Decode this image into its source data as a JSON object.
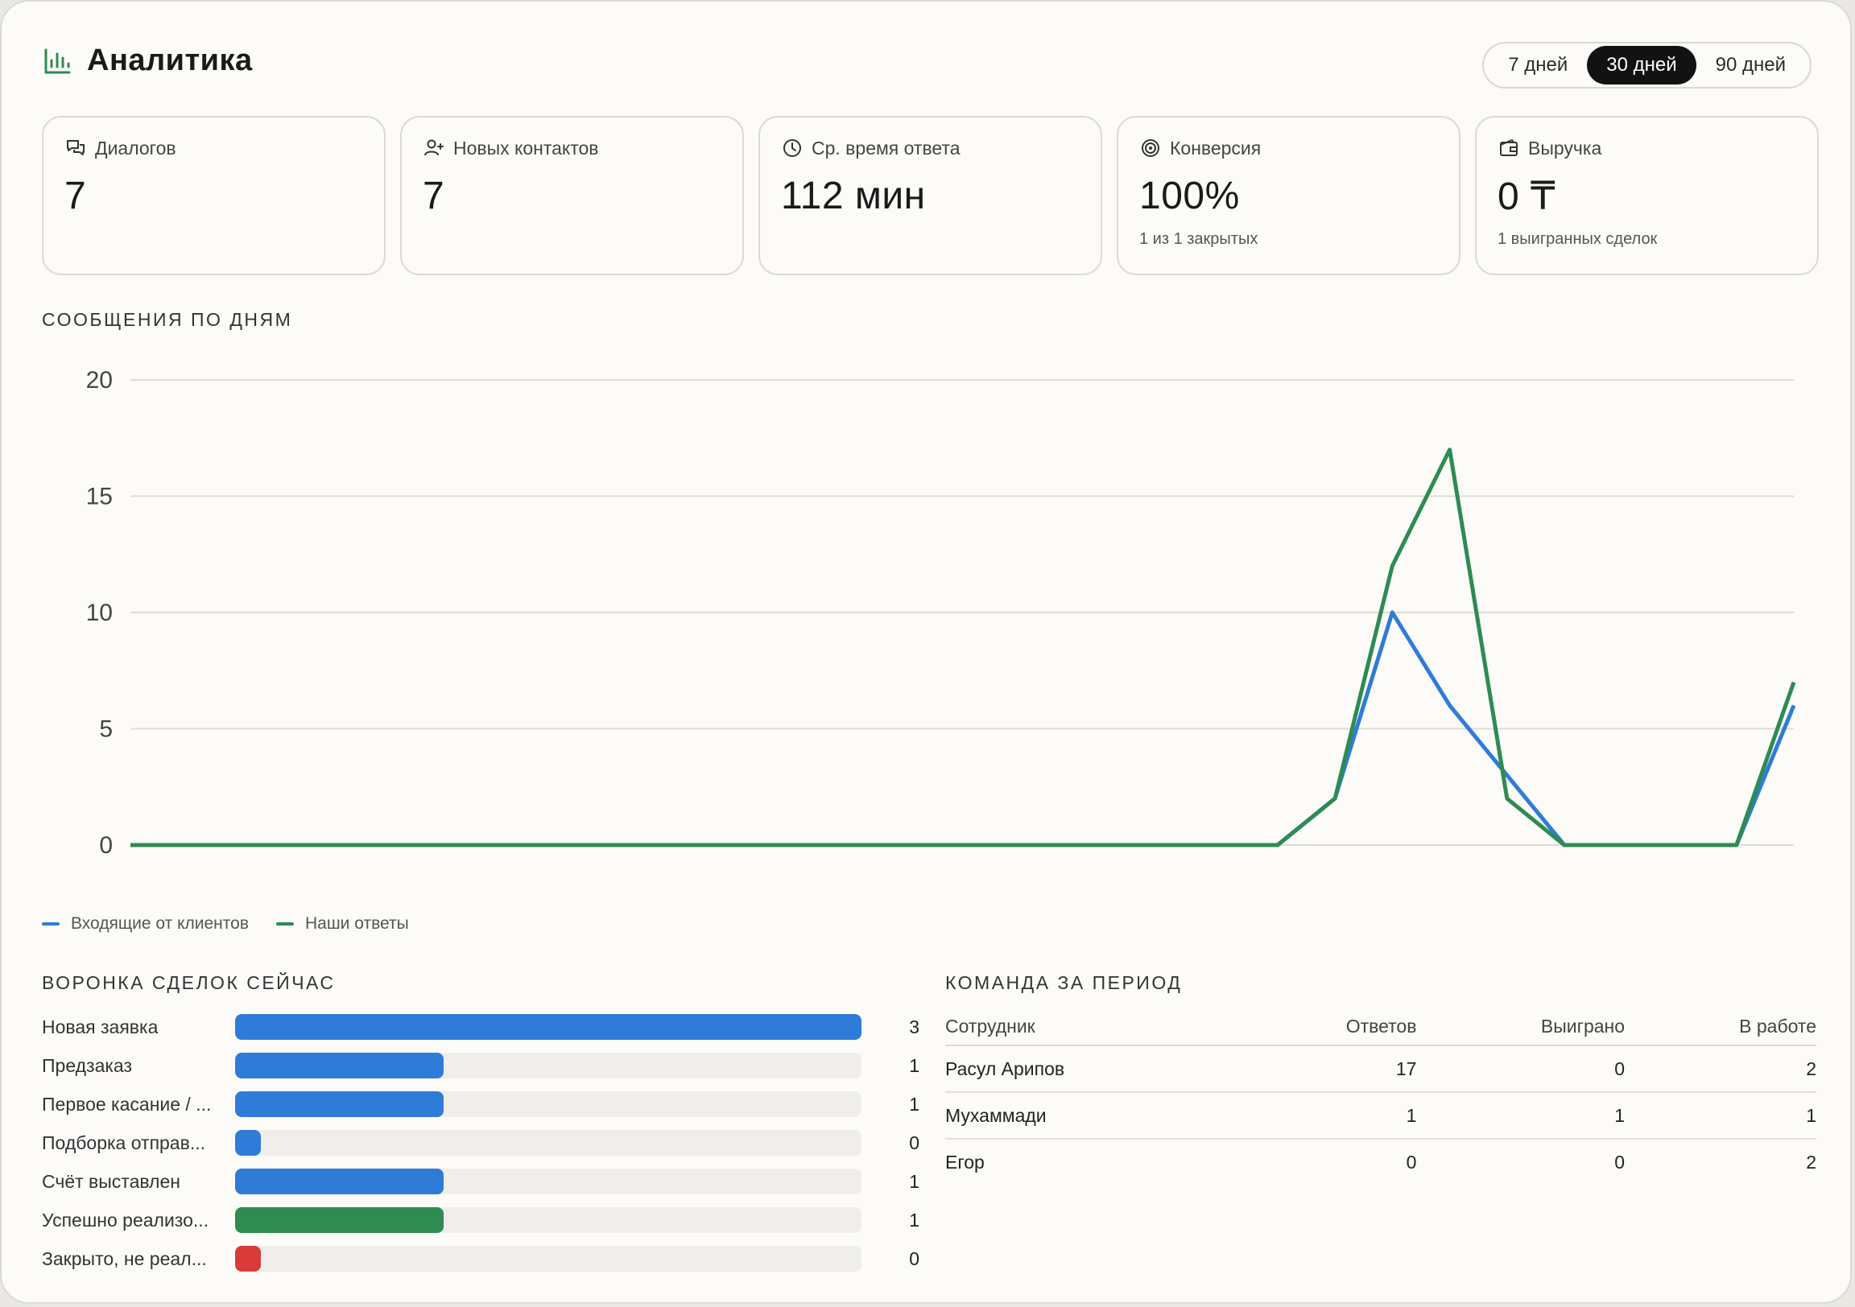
{
  "header": {
    "title": "Аналитика"
  },
  "period": {
    "options": [
      "7 дней",
      "30 дней",
      "90 дней"
    ],
    "active_index": 1
  },
  "kpis": [
    {
      "icon": "chat-icon",
      "label": "Диалогов",
      "value": "7",
      "sub": ""
    },
    {
      "icon": "user-plus-icon",
      "label": "Новых контактов",
      "value": "7",
      "sub": ""
    },
    {
      "icon": "clock-icon",
      "label": "Ср. время ответа",
      "value": "112 мин",
      "sub": ""
    },
    {
      "icon": "target-icon",
      "label": "Конверсия",
      "value": "100%",
      "sub": "1 из 1 закрытых"
    },
    {
      "icon": "wallet-icon",
      "label": "Выручка",
      "value": "0 ₸",
      "sub": "1 выигранных сделок"
    }
  ],
  "messages_section": {
    "title": "СООБЩЕНИЯ ПО ДНЯМ"
  },
  "chart_data": {
    "type": "line",
    "title": "",
    "xlabel": "",
    "ylabel": "",
    "ylim": [
      0,
      20
    ],
    "yticks": [
      0,
      5,
      10,
      15,
      20
    ],
    "grid": true,
    "legend_position": "bottom-left",
    "x": [
      1,
      2,
      3,
      4,
      5,
      6,
      7,
      8,
      9,
      10,
      11,
      12,
      13,
      14,
      15,
      16,
      17,
      18,
      19,
      20,
      21,
      22,
      23,
      24,
      25,
      26,
      27,
      28,
      29,
      30
    ],
    "series": [
      {
        "name": "Входящие от клиентов",
        "color": "#2f7bd8",
        "values": [
          0,
          0,
          0,
          0,
          0,
          0,
          0,
          0,
          0,
          0,
          0,
          0,
          0,
          0,
          0,
          0,
          0,
          0,
          0,
          0,
          0,
          2,
          10,
          6,
          3,
          0,
          0,
          0,
          0,
          6
        ]
      },
      {
        "name": "Наши ответы",
        "color": "#2e8b52",
        "values": [
          0,
          0,
          0,
          0,
          0,
          0,
          0,
          0,
          0,
          0,
          0,
          0,
          0,
          0,
          0,
          0,
          0,
          0,
          0,
          0,
          0,
          2,
          12,
          17,
          2,
          0,
          0,
          0,
          0,
          7
        ]
      }
    ]
  },
  "funnel": {
    "title": "ВОРОНКА СДЕЛОК СЕЙЧАС",
    "max": 3,
    "rows": [
      {
        "name": "Новая заявка",
        "value": 3,
        "color": "#2f7bd8"
      },
      {
        "name": "Предзаказ",
        "value": 1,
        "color": "#2f7bd8"
      },
      {
        "name": "Первое касание / ...",
        "value": 1,
        "color": "#2f7bd8"
      },
      {
        "name": "Подборка отправ...",
        "value": 0,
        "color": "#2f7bd8"
      },
      {
        "name": "Счёт выставлен",
        "value": 1,
        "color": "#2f7bd8"
      },
      {
        "name": "Успешно реализо...",
        "value": 1,
        "color": "#2e8b52"
      },
      {
        "name": "Закрыто, не реал...",
        "value": 0,
        "color": "#d93a3a"
      }
    ]
  },
  "team": {
    "title": "КОМАНДА ЗА ПЕРИОД",
    "columns": [
      "Сотрудник",
      "Ответов",
      "Выиграно",
      "В работе"
    ],
    "rows": [
      [
        "Расул Арипов",
        "17",
        "0",
        "2"
      ],
      [
        "Мухаммади",
        "1",
        "1",
        "1"
      ],
      [
        "Егор",
        "0",
        "0",
        "2"
      ]
    ]
  }
}
